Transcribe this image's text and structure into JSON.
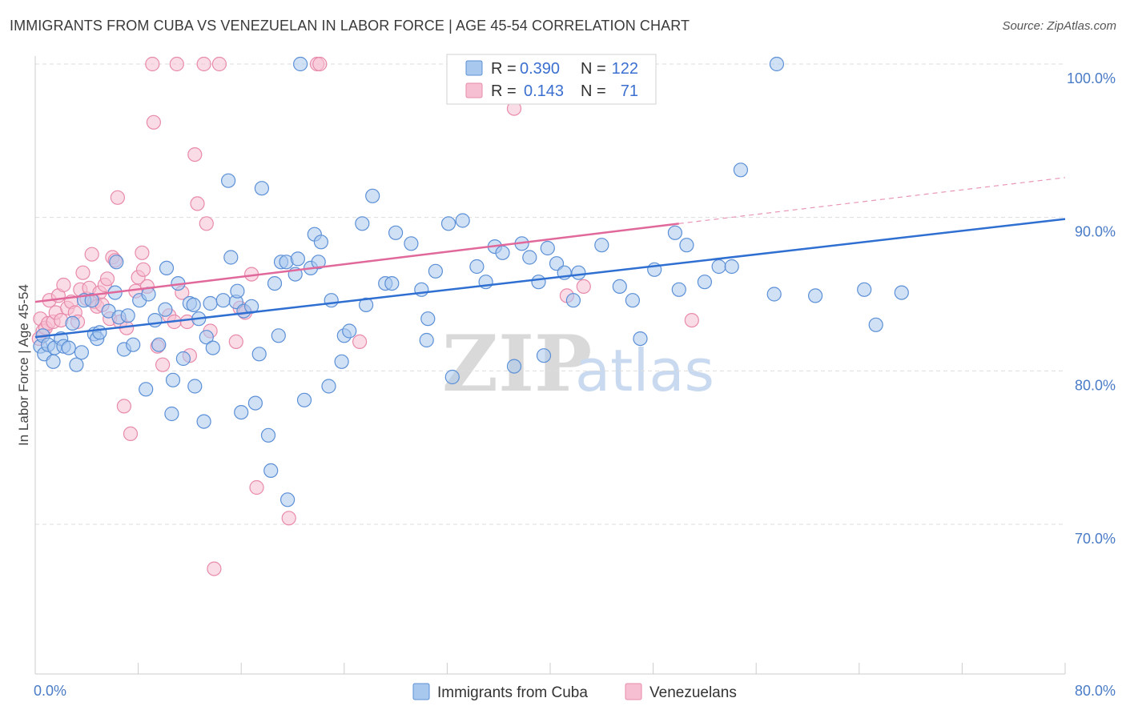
{
  "header": {
    "title": "IMMIGRANTS FROM CUBA VS VENEZUELAN IN LABOR FORCE | AGE 45-54 CORRELATION CHART",
    "source": "Source: ZipAtlas.com"
  },
  "colors": {
    "blue_fill": "#a9c8ee",
    "blue_stroke": "#5b8fd6",
    "blue_line": "#2f6fd1",
    "pink_fill": "#f6c0d2",
    "pink_stroke": "#e88aab",
    "pink_line": "#e0689a",
    "tick_text": "#4a7bc6",
    "grid": "#dddddd"
  },
  "legend": {
    "rows": [
      {
        "r_label": "R =",
        "r_value": "0.390",
        "n_label": "N =",
        "n_value": "122"
      },
      {
        "r_label": "R =",
        "r_value": "0.143",
        "n_label": "N =",
        "n_value": "71"
      }
    ]
  },
  "bottom_legend": {
    "items": [
      "Immigrants from Cuba",
      "Venezuelans"
    ]
  },
  "watermark": {
    "zip": "ZIP",
    "atlas": "atlas"
  },
  "chart_data": {
    "type": "scatter",
    "title": "IMMIGRANTS FROM CUBA VS VENEZUELAN IN LABOR FORCE | AGE 45-54 CORRELATION CHART",
    "ylabel": "In Labor Force | Age 45-54",
    "xlim": [
      0,
      80
    ],
    "ylim": [
      60.5,
      101
    ],
    "x_tick_labels": [
      "0.0%",
      "80.0%"
    ],
    "y_ticks": [
      70,
      80,
      90,
      100
    ],
    "y_tick_labels": [
      "70.0%",
      "80.0%",
      "90.0%",
      "100.0%"
    ],
    "grid": true,
    "legend_position": "top-center",
    "series": [
      {
        "name": "Immigrants from Cuba",
        "color": "#a9c8ee",
        "R": 0.39,
        "N": 122,
        "trend": {
          "x": [
            0,
            80
          ],
          "y": [
            82.2,
            89.9
          ]
        },
        "points": [
          [
            0.4,
            81.6
          ],
          [
            0.6,
            82.3
          ],
          [
            0.7,
            81.1
          ],
          [
            1.0,
            81.7
          ],
          [
            1.4,
            80.6
          ],
          [
            1.5,
            81.5
          ],
          [
            2.0,
            82.1
          ],
          [
            2.2,
            81.6
          ],
          [
            2.6,
            81.5
          ],
          [
            2.9,
            83.1
          ],
          [
            3.2,
            80.4
          ],
          [
            3.6,
            81.2
          ],
          [
            3.8,
            84.6
          ],
          [
            4.4,
            84.6
          ],
          [
            4.6,
            82.4
          ],
          [
            4.8,
            82.1
          ],
          [
            5.0,
            82.5
          ],
          [
            5.7,
            83.9
          ],
          [
            6.2,
            85.1
          ],
          [
            6.3,
            87.1
          ],
          [
            6.5,
            83.5
          ],
          [
            6.9,
            81.4
          ],
          [
            7.2,
            83.6
          ],
          [
            7.6,
            81.7
          ],
          [
            8.1,
            84.6
          ],
          [
            8.6,
            78.8
          ],
          [
            8.8,
            85.0
          ],
          [
            9.3,
            83.3
          ],
          [
            9.6,
            81.7
          ],
          [
            10.1,
            84.0
          ],
          [
            10.2,
            86.7
          ],
          [
            10.6,
            77.2
          ],
          [
            10.7,
            79.4
          ],
          [
            11.1,
            85.7
          ],
          [
            11.5,
            80.8
          ],
          [
            12.0,
            84.4
          ],
          [
            12.3,
            84.3
          ],
          [
            12.4,
            79.0
          ],
          [
            12.7,
            83.4
          ],
          [
            13.1,
            76.7
          ],
          [
            13.3,
            82.2
          ],
          [
            13.6,
            84.4
          ],
          [
            13.8,
            81.5
          ],
          [
            14.6,
            84.6
          ],
          [
            15.0,
            92.4
          ],
          [
            15.2,
            87.4
          ],
          [
            15.6,
            84.5
          ],
          [
            15.7,
            85.2
          ],
          [
            16.0,
            77.3
          ],
          [
            16.2,
            83.9
          ],
          [
            16.8,
            84.2
          ],
          [
            17.1,
            77.9
          ],
          [
            17.4,
            81.1
          ],
          [
            17.6,
            91.9
          ],
          [
            18.1,
            75.8
          ],
          [
            18.3,
            73.5
          ],
          [
            18.6,
            85.7
          ],
          [
            18.9,
            82.3
          ],
          [
            19.1,
            87.1
          ],
          [
            19.5,
            87.1
          ],
          [
            19.6,
            71.6
          ],
          [
            20.2,
            86.3
          ],
          [
            20.4,
            87.3
          ],
          [
            20.6,
            100.0
          ],
          [
            20.9,
            78.1
          ],
          [
            21.4,
            86.7
          ],
          [
            21.7,
            88.9
          ],
          [
            22.0,
            87.1
          ],
          [
            22.2,
            88.4
          ],
          [
            22.8,
            79.0
          ],
          [
            23.0,
            84.6
          ],
          [
            23.8,
            80.6
          ],
          [
            24.0,
            82.3
          ],
          [
            24.4,
            82.6
          ],
          [
            25.4,
            89.6
          ],
          [
            25.7,
            84.3
          ],
          [
            26.2,
            91.4
          ],
          [
            27.2,
            85.7
          ],
          [
            27.7,
            85.7
          ],
          [
            28.0,
            89.0
          ],
          [
            29.2,
            88.3
          ],
          [
            30.0,
            85.3
          ],
          [
            30.4,
            82.0
          ],
          [
            30.5,
            83.4
          ],
          [
            31.1,
            86.5
          ],
          [
            32.1,
            89.6
          ],
          [
            32.4,
            79.6
          ],
          [
            33.2,
            89.8
          ],
          [
            34.3,
            86.8
          ],
          [
            35.0,
            85.8
          ],
          [
            35.7,
            88.1
          ],
          [
            36.3,
            87.7
          ],
          [
            37.2,
            80.3
          ],
          [
            37.8,
            88.3
          ],
          [
            38.4,
            87.4
          ],
          [
            39.1,
            85.8
          ],
          [
            39.5,
            81.0
          ],
          [
            39.8,
            88.0
          ],
          [
            40.5,
            87.0
          ],
          [
            41.1,
            86.4
          ],
          [
            41.8,
            84.6
          ],
          [
            42.2,
            86.4
          ],
          [
            44.0,
            88.2
          ],
          [
            45.4,
            85.5
          ],
          [
            46.4,
            84.6
          ],
          [
            47.0,
            82.1
          ],
          [
            48.1,
            86.6
          ],
          [
            49.7,
            89.0
          ],
          [
            50.0,
            85.3
          ],
          [
            50.6,
            88.2
          ],
          [
            52.0,
            85.8
          ],
          [
            53.1,
            86.8
          ],
          [
            54.1,
            86.8
          ],
          [
            54.8,
            93.1
          ],
          [
            57.4,
            85.0
          ],
          [
            57.6,
            100.0
          ],
          [
            60.6,
            84.9
          ],
          [
            64.4,
            85.3
          ],
          [
            65.3,
            83.0
          ],
          [
            67.3,
            85.1
          ]
        ]
      },
      {
        "name": "Venezuelans",
        "color": "#f6c0d2",
        "R": 0.143,
        "N": 71,
        "trend": {
          "x": [
            0,
            50
          ],
          "y": [
            84.5,
            89.6
          ]
        },
        "trend_extension": {
          "x": [
            50,
            80
          ],
          "y": [
            89.6,
            92.6
          ]
        },
        "points": [
          [
            0.3,
            82.1
          ],
          [
            0.4,
            83.4
          ],
          [
            0.6,
            82.6
          ],
          [
            0.8,
            82.8
          ],
          [
            1.0,
            83.1
          ],
          [
            1.1,
            84.6
          ],
          [
            1.4,
            83.2
          ],
          [
            1.6,
            83.8
          ],
          [
            1.8,
            84.9
          ],
          [
            2.0,
            83.3
          ],
          [
            2.2,
            85.6
          ],
          [
            2.5,
            84.1
          ],
          [
            2.8,
            84.5
          ],
          [
            3.1,
            83.8
          ],
          [
            3.3,
            83.2
          ],
          [
            3.5,
            85.3
          ],
          [
            3.7,
            86.4
          ],
          [
            4.0,
            84.7
          ],
          [
            4.2,
            85.4
          ],
          [
            4.4,
            87.6
          ],
          [
            4.6,
            84.5
          ],
          [
            4.8,
            84.2
          ],
          [
            5.0,
            85.1
          ],
          [
            5.2,
            84.3
          ],
          [
            5.4,
            85.6
          ],
          [
            5.6,
            86.0
          ],
          [
            5.8,
            83.4
          ],
          [
            6.0,
            87.4
          ],
          [
            6.2,
            87.2
          ],
          [
            6.4,
            91.3
          ],
          [
            6.6,
            83.2
          ],
          [
            6.9,
            77.7
          ],
          [
            7.1,
            82.8
          ],
          [
            7.4,
            75.9
          ],
          [
            7.8,
            85.2
          ],
          [
            8.0,
            86.1
          ],
          [
            8.3,
            87.7
          ],
          [
            8.4,
            86.6
          ],
          [
            8.7,
            85.5
          ],
          [
            9.1,
            100.0
          ],
          [
            9.2,
            96.2
          ],
          [
            9.5,
            81.6
          ],
          [
            9.9,
            80.4
          ],
          [
            10.4,
            83.6
          ],
          [
            10.8,
            83.2
          ],
          [
            11.0,
            100.0
          ],
          [
            11.4,
            85.1
          ],
          [
            11.8,
            83.2
          ],
          [
            12.0,
            81.0
          ],
          [
            12.4,
            94.1
          ],
          [
            12.6,
            90.9
          ],
          [
            13.1,
            100.0
          ],
          [
            13.3,
            89.6
          ],
          [
            13.6,
            82.6
          ],
          [
            13.9,
            67.1
          ],
          [
            14.3,
            100.0
          ],
          [
            15.6,
            81.9
          ],
          [
            15.9,
            84.1
          ],
          [
            16.3,
            83.8
          ],
          [
            16.8,
            86.3
          ],
          [
            17.2,
            72.4
          ],
          [
            19.7,
            70.4
          ],
          [
            21.9,
            100.0
          ],
          [
            22.1,
            100.0
          ],
          [
            25.2,
            81.9
          ],
          [
            37.2,
            97.1
          ],
          [
            37.6,
            100.0
          ],
          [
            41.3,
            84.9
          ],
          [
            42.6,
            85.5
          ],
          [
            51.0,
            83.3
          ]
        ]
      }
    ]
  }
}
